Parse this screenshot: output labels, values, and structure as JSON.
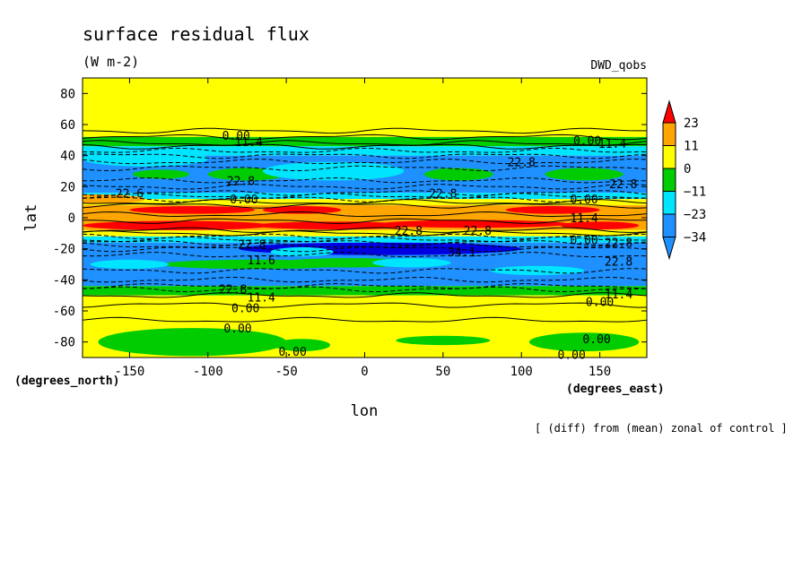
{
  "chart_data": {
    "type": "heatmap",
    "title": "surface residual flux",
    "subtitle": "(W m-2)",
    "model_label": "DWD_qobs",
    "footer": "[ (diff) from (mean) zonal of control ]",
    "xlabel": "lon",
    "ylabel": "lat",
    "x_units": "(degrees_east)",
    "y_units": "(degrees_north)",
    "xlim": [
      -180,
      180
    ],
    "ylim": [
      -90,
      90
    ],
    "x_ticks": [
      "-150",
      "-100",
      "-50",
      "0",
      "50",
      "100",
      "150"
    ],
    "x_tick_values": [
      -150,
      -100,
      -50,
      0,
      50,
      100,
      150
    ],
    "y_ticks": [
      "80",
      "60",
      "40",
      "20",
      "0",
      "-20",
      "-40",
      "-60",
      "-80"
    ],
    "y_tick_values": [
      80,
      60,
      40,
      20,
      0,
      -20,
      -40,
      -60,
      -80
    ],
    "colorbar": {
      "labels": [
        "23",
        "11",
        "0",
        "−11",
        "−23",
        "−34"
      ],
      "levels": [
        23,
        11,
        0,
        -11,
        -23,
        -34
      ],
      "colors": [
        "#ff0000",
        "#ffa500",
        "#ffff00",
        "#00cc00",
        "#00e5ff",
        "#1e90ff",
        "#0000e0"
      ]
    },
    "zonal_bands": [
      {
        "lat_from": 90,
        "lat_to": 52,
        "level": "0 to 11"
      },
      {
        "lat_from": 52,
        "lat_to": 46,
        "level": "-11 to 0"
      },
      {
        "lat_from": 46,
        "lat_to": 40,
        "level": "-23 to -11"
      },
      {
        "lat_from": 40,
        "lat_to": 16,
        "level": "-34 to -23"
      },
      {
        "lat_from": 16,
        "lat_to": 12,
        "level": "-23 to -11"
      },
      {
        "lat_from": 12,
        "lat_to": 8,
        "level": "0 to 11"
      },
      {
        "lat_from": 8,
        "lat_to": 2,
        "level": "11 to 23"
      },
      {
        "lat_from": 2,
        "lat_to": -2,
        "level": "11 to 23"
      },
      {
        "lat_from": -2,
        "lat_to": -8,
        "level": "11 to 23"
      },
      {
        "lat_from": -8,
        "lat_to": -12,
        "level": "0 to 11"
      },
      {
        "lat_from": -12,
        "lat_to": -16,
        "level": "-23 to -11"
      },
      {
        "lat_from": -16,
        "lat_to": -44,
        "level": "-34 to -23"
      },
      {
        "lat_from": -44,
        "lat_to": -50,
        "level": "-11 to 0"
      },
      {
        "lat_from": -50,
        "lat_to": -90,
        "level": "0 to 11"
      }
    ],
    "contour_labels": [
      {
        "text": "0.00",
        "lon": -82,
        "lat": 53
      },
      {
        "text": "11.4",
        "lon": -74,
        "lat": 49
      },
      {
        "text": "0.00",
        "lon": 142,
        "lat": 50
      },
      {
        "text": "11.4",
        "lon": 158,
        "lat": 48
      },
      {
        "text": "22.8",
        "lon": 100,
        "lat": 36
      },
      {
        "text": "22.8",
        "lon": -79,
        "lat": 24
      },
      {
        "text": "22.8",
        "lon": 165,
        "lat": 22
      },
      {
        "text": "22.6",
        "lon": -150,
        "lat": 16
      },
      {
        "text": "22.8",
        "lon": 50,
        "lat": 16
      },
      {
        "text": "0.00",
        "lon": 140,
        "lat": 12
      },
      {
        "text": "0.00",
        "lon": -77,
        "lat": 12
      },
      {
        "text": "11.4",
        "lon": 140,
        "lat": 0
      },
      {
        "text": "22.8",
        "lon": 28,
        "lat": -8
      },
      {
        "text": "22.8",
        "lon": 72,
        "lat": -8
      },
      {
        "text": "0.00",
        "lon": 140,
        "lat": -14
      },
      {
        "text": "22.8",
        "lon": 162,
        "lat": -16
      },
      {
        "text": "22.8",
        "lon": -72,
        "lat": -17
      },
      {
        "text": "34.1",
        "lon": 62,
        "lat": -22
      },
      {
        "text": "11.6",
        "lon": -66,
        "lat": -27
      },
      {
        "text": "22.8",
        "lon": 162,
        "lat": -28
      },
      {
        "text": "22.8",
        "lon": -84,
        "lat": -46
      },
      {
        "text": "11.4",
        "lon": -66,
        "lat": -51
      },
      {
        "text": "11.4",
        "lon": 162,
        "lat": -49
      },
      {
        "text": "0.00",
        "lon": 150,
        "lat": -54
      },
      {
        "text": "0.00",
        "lon": -76,
        "lat": -58
      },
      {
        "text": "0.00",
        "lon": -81,
        "lat": -71
      },
      {
        "text": "0.00",
        "lon": -46,
        "lat": -86
      },
      {
        "text": "0.00",
        "lon": 148,
        "lat": -78
      },
      {
        "text": "0.00",
        "lon": 132,
        "lat": -88
      }
    ]
  }
}
